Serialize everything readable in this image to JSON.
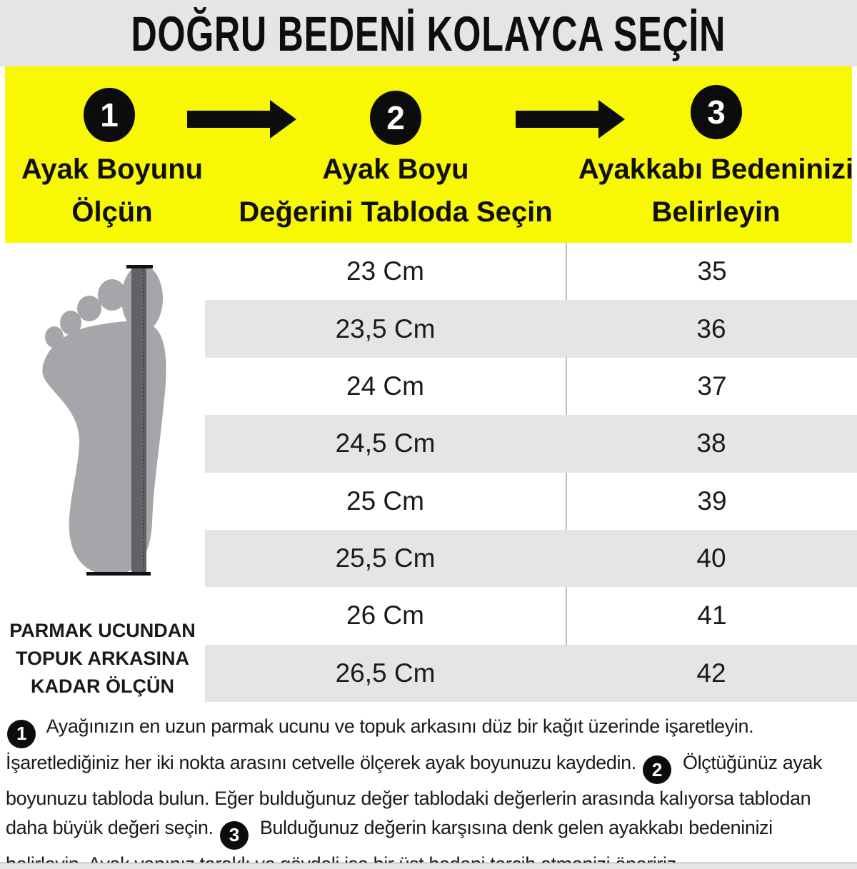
{
  "title": "DOĞRU BEDENİ KOLAYCA SEÇİN",
  "steps": {
    "items": [
      {
        "number": "1",
        "label_line1": "Ayak Boyunu",
        "label_line2": "Ölçün"
      },
      {
        "number": "2",
        "label_line1": "Ayak Boyu",
        "label_line2": "Değerini Tabloda Seçin"
      },
      {
        "number": "3",
        "label_line1": "Ayakkabı Bedeninizi",
        "label_line2": "Belirleyin"
      }
    ]
  },
  "foot_panel": {
    "caption_line1": "PARMAK UCUNDAN",
    "caption_line2": "TOPUK ARKASINA",
    "caption_line3": "KADAR ÖLÇÜN"
  },
  "size_table": {
    "rows": [
      {
        "length_cm": "23 Cm",
        "size": "35"
      },
      {
        "length_cm": "23,5 Cm",
        "size": "36"
      },
      {
        "length_cm": "24 Cm",
        "size": "37"
      },
      {
        "length_cm": "24,5 Cm",
        "size": "38"
      },
      {
        "length_cm": "25 Cm",
        "size": "39"
      },
      {
        "length_cm": "25,5 Cm",
        "size": "40"
      },
      {
        "length_cm": "26 Cm",
        "size": "41"
      },
      {
        "length_cm": "26,5 Cm",
        "size": "42"
      }
    ]
  },
  "footnote": {
    "segments": [
      {
        "type": "badge",
        "value": "1"
      },
      {
        "type": "text",
        "value": "Ayağınızın en uzun parmak ucunu ve topuk arkasını düz bir kağıt üzerinde işaretleyin. İşaretlediğiniz her iki nokta arasını cetvelle ölçerek ayak boyunuzu kaydedin."
      },
      {
        "type": "badge",
        "value": "2"
      },
      {
        "type": "text",
        "value": "Ölçtüğünüz ayak boyunuzu tabloda bulun. Eğer bulduğunuz değer tablodaki değerlerin arasında kalıyorsa tablodan daha büyük değeri seçin."
      },
      {
        "type": "badge",
        "value": "3"
      },
      {
        "type": "text",
        "value": "Bulduğunuz değerin karşısına denk gelen ayakkabı bedeninizi belirleyin. Ayak yapınız taraklı ve gövdeli ise bir üst bedeni tercih etmenizi öneririz."
      }
    ]
  },
  "colors": {
    "accent_yellow": "#F8F704",
    "header_gray": "#e7e5e3",
    "row_gray": "#e6e5e5",
    "badge_black": "#0c0c0c",
    "foot_gray": "#a6a6aa",
    "ruler_gray": "#626266"
  }
}
